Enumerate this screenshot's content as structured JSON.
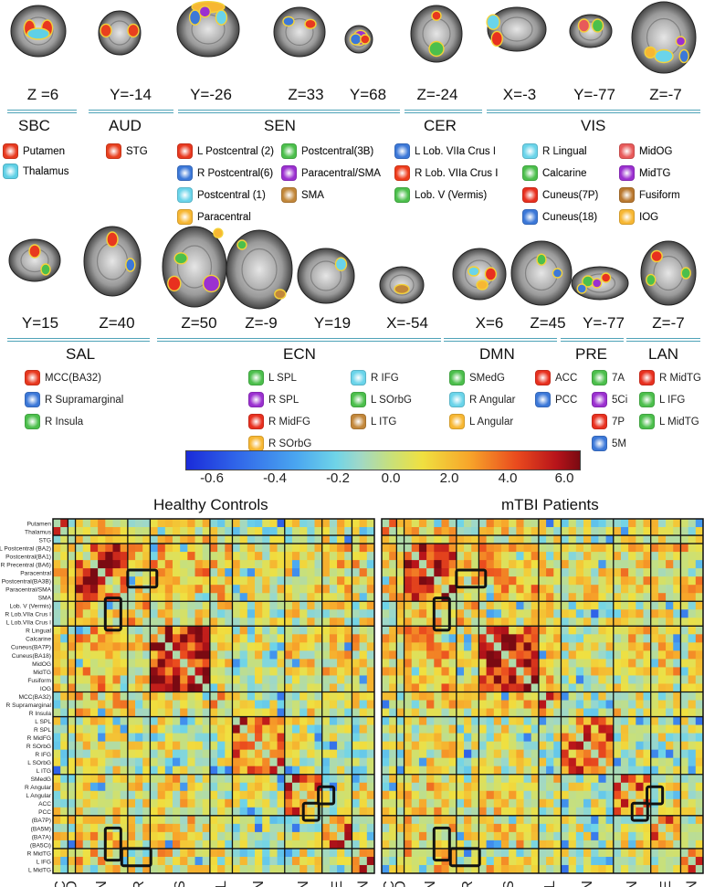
{
  "row1": {
    "coords": [
      "Z =6",
      "Y=-14",
      "Y=-26",
      "Z=33",
      "Y=68",
      "Z=-24",
      "X=-3",
      "Y=-77",
      "Z=-7"
    ],
    "networks": [
      "SBC",
      "AUD",
      "SEN",
      "CER",
      "VIS"
    ],
    "legend": [
      {
        "label": "Putamen",
        "color": "#e83a1f"
      },
      {
        "label": "Thalamus",
        "color": "#5fd0e6"
      },
      {
        "label": "STG",
        "color": "#e8401f"
      },
      {
        "label": "L Postcentral (2)",
        "color": "#e8381f"
      },
      {
        "label": "R Postcentral(6)",
        "color": "#3c78d8"
      },
      {
        "label": "Postcentral (1)",
        "color": "#6ad4ea"
      },
      {
        "label": "Paracentral",
        "color": "#f7b733"
      },
      {
        "label": "Postcentral(3B)",
        "color": "#4cbf4c"
      },
      {
        "label": "Paracentral/SMA",
        "color": "#9b30d0"
      },
      {
        "label": "SMA",
        "color": "#c2873a"
      },
      {
        "label": "L Lob. VIIa Crus I",
        "color": "#3c78d8"
      },
      {
        "label": "R Lob. VIIa Crus I",
        "color": "#ee3c1c"
      },
      {
        "label": "Lob. V (Vermis)",
        "color": "#4cbf4c"
      },
      {
        "label": "R Lingual",
        "color": "#6ad4ea"
      },
      {
        "label": "Calcarine",
        "color": "#4cbf4c"
      },
      {
        "label": "Cuneus(7P)",
        "color": "#e8301f"
      },
      {
        "label": "Cuneus(18)",
        "color": "#3c78d8"
      },
      {
        "label": "MidOG",
        "color": "#e85a5a"
      },
      {
        "label": "MidTG",
        "color": "#9b30d0"
      },
      {
        "label": "Fusiform",
        "color": "#b9782f"
      },
      {
        "label": "IOG",
        "color": "#f7b733"
      }
    ]
  },
  "row2": {
    "coords": [
      "Y=15",
      "Z=40",
      "Z=50",
      "Z=-9",
      "Y=19",
      "X=-54",
      "X=6",
      "Z=45",
      "Y=-77",
      "Z=-7"
    ],
    "networks": [
      "SAL",
      "ECN",
      "DMN",
      "PRE",
      "LAN"
    ],
    "legend": [
      {
        "label": "MCC(BA32)",
        "color": "#e8381f"
      },
      {
        "label": "R Supramarginal",
        "color": "#3c78d8"
      },
      {
        "label": "R Insula",
        "color": "#4cbf4c"
      },
      {
        "label": "L SPL",
        "color": "#4cbf4c"
      },
      {
        "label": "R SPL",
        "color": "#9b30d0"
      },
      {
        "label": "R MidFG",
        "color": "#e8301f"
      },
      {
        "label": "R SOrbG",
        "color": "#f7b733"
      },
      {
        "label": "R IFG",
        "color": "#6ad4ea"
      },
      {
        "label": "L SOrbG",
        "color": "#4cbf4c"
      },
      {
        "label": "L ITG",
        "color": "#c2873a"
      },
      {
        "label": "SMedG",
        "color": "#4cbf4c"
      },
      {
        "label": "R Angular",
        "color": "#6ad4ea"
      },
      {
        "label": "L Angular",
        "color": "#f7b733"
      },
      {
        "label": "ACC",
        "color": "#e8301f"
      },
      {
        "label": "PCC",
        "color": "#3c78d8"
      },
      {
        "label": "7A",
        "color": "#4cbf4c"
      },
      {
        "label": "5Ci",
        "color": "#9b30d0"
      },
      {
        "label": "7P",
        "color": "#e8301f"
      },
      {
        "label": "5M",
        "color": "#3c78d8"
      },
      {
        "label": "R MidTG",
        "color": "#e8301f"
      },
      {
        "label": "L IFG",
        "color": "#4cbf4c"
      },
      {
        "label": "L MidTG",
        "color": "#4cbf4c"
      }
    ]
  },
  "colorbar": {
    "ticks": [
      "-0.6",
      "-0.4",
      "-0.2",
      "0.0",
      "2.0",
      "4.0",
      "6.0"
    ]
  },
  "chart_data": {
    "type": "heatmap",
    "panels": [
      "Healthy Controls",
      "mTBI Patients"
    ],
    "row_labels": [
      "Putamen",
      "Thalamus",
      "STG",
      "L Postcentral (BA2)",
      "Postcentral(BA1)",
      "R Precentral (BA6)",
      "Paracentral",
      "Postcentral(BA3B)",
      "Paracentral/SMA",
      "SMA",
      "Lob. V (Vermis)",
      "R Lob.VIIa Crus I",
      "L Lob.VIIa Crus I",
      "R Lingual",
      "Calcarine",
      "Cuneus(BA7P)",
      "Cuneus(BA18)",
      "MidOG",
      "MidTG",
      "Fusiform",
      "IOG",
      "MCC(BA32)",
      "R Supramarginal",
      "R Insula",
      "L SPL",
      "R SPL",
      "R MidFG",
      "R SOrbG",
      "R IFG",
      "L SOrbG",
      "L ITG",
      "SMedG",
      "R Angular",
      "L Angular",
      "ACC",
      "PCC",
      "(BA7P)",
      "(BA5M)",
      "(BA7A)",
      "(BA5Ci)",
      "R MidTG",
      "L IFG",
      "L MidTG"
    ],
    "network_axis_labels": [
      "SBC",
      "AUD",
      "SEN",
      "CER",
      "VIS",
      "SAL",
      "ECN",
      "DMN",
      "PRE",
      "LAN"
    ],
    "network_sizes": [
      2,
      1,
      7,
      3,
      8,
      3,
      7,
      5,
      4,
      3
    ],
    "colorbar_ticks": [
      -0.6,
      -0.4,
      -0.2,
      0.0,
      2.0,
      4.0,
      6.0
    ]
  }
}
